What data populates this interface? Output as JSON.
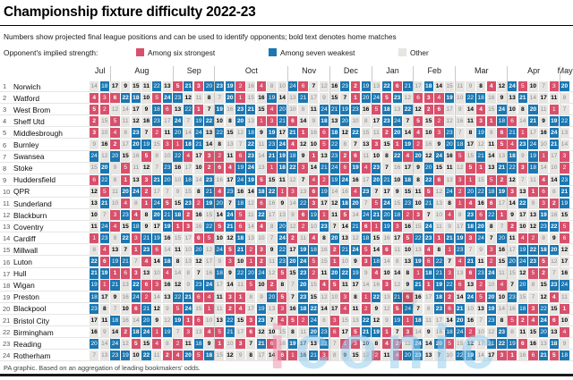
{
  "title": "Championship fixture difficulty 2022-23",
  "subtitle": "Numbers show projected final league positions and can be used to identify opponents; bold text denotes home matches",
  "legend": {
    "label": "Opponent's implied strength:",
    "items": [
      {
        "label": "Among six strongest",
        "color": "#d8506b"
      },
      {
        "label": "Among seven weakest",
        "color": "#1b77b1"
      },
      {
        "label": "Other",
        "color": "#e6e5e2"
      }
    ]
  },
  "footer": "PA graphic. Based on an aggregation of leading bookmakers' odds.",
  "watermark": {
    "first": "i",
    "rest": "conic"
  },
  "chart_data": {
    "type": "heatmap",
    "columns_total": 46,
    "months": [
      {
        "label": "Jul",
        "cols": 2
      },
      {
        "label": "Aug",
        "cols": 6
      },
      {
        "label": "Sep",
        "cols": 4
      },
      {
        "label": "Oct",
        "cols": 7
      },
      {
        "label": "Nov",
        "cols": 4
      },
      {
        "label": "Dec",
        "cols": 4
      },
      {
        "label": "Jan",
        "cols": 4
      },
      {
        "label": "Feb",
        "cols": 4
      },
      {
        "label": "Mar",
        "cols": 5
      },
      {
        "label": "Apr",
        "cols": 5
      },
      {
        "label": "May",
        "cols": 1
      }
    ],
    "color_rule": {
      "pink_strongest": "values 1-6",
      "gray_other": "values 7-17",
      "blue_weakest": "values 18-24"
    },
    "teams": [
      {
        "rank": 1,
        "name": "Norwich",
        "fixtures": [
          14,
          18,
          17,
          9,
          15,
          11,
          22,
          13,
          5,
          21,
          3,
          20,
          23,
          19,
          2,
          16,
          4,
          8,
          10,
          24,
          6,
          7,
          12,
          16,
          23,
          2,
          19,
          13,
          22,
          6,
          21,
          17,
          18,
          14,
          15,
          11,
          9,
          8,
          4,
          12,
          24,
          5,
          10,
          7,
          3,
          20
        ]
      },
      {
        "rank": 2,
        "name": "Watford",
        "fixtures": [
          4,
          3,
          6,
          22,
          18,
          10,
          5,
          24,
          23,
          12,
          11,
          8,
          7,
          20,
          1,
          15,
          16,
          19,
          14,
          13,
          21,
          17,
          9,
          15,
          7,
          1,
          20,
          24,
          5,
          23,
          12,
          6,
          3,
          4,
          19,
          10,
          22,
          18,
          16,
          9,
          13,
          21,
          14,
          17,
          11,
          8
        ]
      },
      {
        "rank": 3,
        "name": "West Brom",
        "fixtures": [
          5,
          2,
          12,
          14,
          17,
          9,
          18,
          6,
          13,
          22,
          1,
          7,
          19,
          16,
          23,
          21,
          15,
          4,
          20,
          10,
          8,
          11,
          24,
          21,
          19,
          23,
          16,
          5,
          18,
          13,
          22,
          12,
          2,
          6,
          17,
          9,
          14,
          4,
          15,
          24,
          10,
          8,
          20,
          11,
          1,
          7
        ]
      },
      {
        "rank": 4,
        "name": "Sheff Utd",
        "fixtures": [
          2,
          15,
          5,
          11,
          12,
          16,
          23,
          17,
          24,
          7,
          19,
          22,
          10,
          8,
          20,
          13,
          1,
          3,
          21,
          6,
          14,
          9,
          18,
          13,
          20,
          10,
          8,
          17,
          23,
          24,
          7,
          5,
          15,
          2,
          12,
          16,
          11,
          3,
          1,
          18,
          6,
          14,
          21,
          9,
          19,
          22
        ]
      },
      {
        "rank": 5,
        "name": "Middlesbrough",
        "fixtures": [
          3,
          10,
          4,
          8,
          23,
          7,
          2,
          11,
          20,
          14,
          24,
          13,
          22,
          15,
          12,
          18,
          9,
          19,
          17,
          21,
          1,
          16,
          6,
          18,
          12,
          22,
          15,
          11,
          2,
          20,
          14,
          4,
          10,
          3,
          23,
          7,
          8,
          19,
          9,
          6,
          21,
          1,
          17,
          16,
          24,
          13
        ]
      },
      {
        "rank": 6,
        "name": "Burnley",
        "fixtures": [
          9,
          16,
          2,
          17,
          20,
          19,
          15,
          3,
          1,
          18,
          21,
          14,
          8,
          13,
          7,
          22,
          11,
          23,
          24,
          4,
          12,
          10,
          5,
          22,
          8,
          7,
          13,
          3,
          15,
          1,
          19,
          2,
          16,
          9,
          20,
          18,
          17,
          12,
          11,
          5,
          4,
          23,
          24,
          10,
          21,
          14
        ]
      },
      {
        "rank": 7,
        "name": "Swansea",
        "fixtures": [
          24,
          12,
          20,
          15,
          16,
          5,
          8,
          10,
          22,
          4,
          17,
          3,
          2,
          11,
          6,
          23,
          14,
          21,
          19,
          18,
          9,
          1,
          13,
          23,
          2,
          6,
          11,
          10,
          8,
          22,
          4,
          20,
          12,
          24,
          16,
          5,
          15,
          21,
          14,
          13,
          18,
          9,
          19,
          1,
          17,
          3
        ]
      },
      {
        "rank": 8,
        "name": "Stoke",
        "fixtures": [
          15,
          20,
          9,
          5,
          11,
          12,
          7,
          23,
          16,
          17,
          10,
          2,
          6,
          4,
          19,
          24,
          13,
          1,
          18,
          22,
          3,
          14,
          21,
          24,
          6,
          19,
          4,
          23,
          7,
          16,
          17,
          9,
          20,
          15,
          11,
          12,
          5,
          1,
          13,
          21,
          22,
          3,
          18,
          14,
          10,
          2
        ]
      },
      {
        "rank": 9,
        "name": "Huddersfield",
        "fixtures": [
          6,
          22,
          8,
          1,
          13,
          3,
          21,
          20,
          10,
          18,
          14,
          23,
          16,
          17,
          24,
          19,
          5,
          15,
          11,
          12,
          7,
          4,
          2,
          19,
          24,
          16,
          17,
          20,
          21,
          10,
          18,
          8,
          22,
          6,
          13,
          3,
          1,
          15,
          5,
          2,
          12,
          7,
          11,
          4,
          14,
          23
        ]
      },
      {
        "rank": 10,
        "name": "QPR",
        "fixtures": [
          12,
          5,
          11,
          20,
          24,
          2,
          17,
          7,
          9,
          15,
          8,
          21,
          4,
          23,
          16,
          14,
          18,
          22,
          1,
          3,
          13,
          6,
          19,
          14,
          16,
          4,
          23,
          7,
          17,
          9,
          15,
          11,
          5,
          12,
          24,
          2,
          20,
          22,
          18,
          19,
          3,
          13,
          1,
          6,
          8,
          21
        ]
      },
      {
        "rank": 11,
        "name": "Sunderland",
        "fixtures": [
          13,
          21,
          10,
          4,
          8,
          1,
          24,
          5,
          15,
          23,
          2,
          19,
          20,
          7,
          18,
          12,
          6,
          16,
          9,
          14,
          22,
          3,
          17,
          12,
          18,
          20,
          7,
          5,
          24,
          15,
          23,
          10,
          21,
          13,
          8,
          1,
          4,
          16,
          6,
          17,
          14,
          22,
          9,
          3,
          2,
          19
        ]
      },
      {
        "rank": 12,
        "name": "Blackburn",
        "fixtures": [
          10,
          7,
          3,
          23,
          4,
          8,
          20,
          21,
          18,
          2,
          16,
          15,
          14,
          24,
          5,
          11,
          22,
          17,
          13,
          9,
          6,
          19,
          1,
          11,
          5,
          14,
          24,
          21,
          20,
          18,
          2,
          3,
          7,
          10,
          4,
          8,
          23,
          6,
          22,
          1,
          9,
          17,
          13,
          19,
          16,
          15
        ]
      },
      {
        "rank": 13,
        "name": "Coventry",
        "fixtures": [
          11,
          24,
          4,
          15,
          18,
          9,
          17,
          19,
          1,
          3,
          16,
          22,
          5,
          21,
          6,
          14,
          4,
          8,
          20,
          12,
          2,
          10,
          23,
          7,
          14,
          21,
          6,
          1,
          19,
          3,
          16,
          15,
          24,
          11,
          9,
          17,
          18,
          20,
          8,
          7,
          2,
          10,
          12,
          23,
          22,
          5
        ]
      },
      {
        "rank": 14,
        "name": "Cardiff",
        "fixtures": [
          1,
          23,
          9,
          22,
          3,
          21,
          19,
          16,
          15,
          17,
          6,
          5,
          10,
          12,
          18,
          13,
          10,
          7,
          24,
          2,
          11,
          4,
          8,
          20,
          13,
          12,
          18,
          15,
          16,
          17,
          5,
          22,
          23,
          1,
          21,
          19,
          3,
          24,
          7,
          20,
          11,
          4,
          2,
          8,
          9,
          6
        ]
      },
      {
        "rank": 15,
        "name": "Millwall",
        "fixtures": [
          8,
          4,
          13,
          7,
          1,
          23,
          6,
          14,
          11,
          10,
          20,
          12,
          24,
          5,
          21,
          2,
          3,
          9,
          22,
          17,
          19,
          18,
          16,
          2,
          21,
          24,
          5,
          14,
          6,
          11,
          10,
          13,
          4,
          8,
          1,
          23,
          7,
          9,
          3,
          16,
          17,
          19,
          22,
          18,
          20,
          12
        ]
      },
      {
        "rank": 16,
        "name": "Luton",
        "fixtures": [
          22,
          6,
          19,
          21,
          7,
          4,
          14,
          18,
          8,
          13,
          12,
          17,
          9,
          3,
          10,
          1,
          2,
          11,
          23,
          20,
          24,
          5,
          15,
          1,
          10,
          9,
          3,
          18,
          14,
          8,
          13,
          19,
          6,
          22,
          7,
          4,
          21,
          11,
          2,
          15,
          20,
          24,
          23,
          5,
          12,
          17
        ]
      },
      {
        "rank": 17,
        "name": "Hull",
        "fixtures": [
          21,
          19,
          1,
          6,
          3,
          13,
          10,
          4,
          14,
          8,
          7,
          16,
          18,
          9,
          22,
          20,
          24,
          12,
          5,
          15,
          23,
          2,
          11,
          20,
          22,
          19,
          9,
          4,
          10,
          14,
          8,
          1,
          18,
          21,
          3,
          13,
          6,
          23,
          24,
          11,
          15,
          12,
          5,
          2,
          7,
          16
        ]
      },
      {
        "rank": 18,
        "name": "Wigan",
        "fixtures": [
          19,
          1,
          21,
          13,
          22,
          6,
          3,
          16,
          12,
          9,
          23,
          24,
          17,
          14,
          11,
          5,
          10,
          2,
          8,
          7,
          20,
          15,
          4,
          5,
          11,
          17,
          14,
          16,
          3,
          12,
          9,
          21,
          1,
          19,
          22,
          6,
          13,
          2,
          10,
          4,
          7,
          20,
          8,
          15,
          23,
          24
        ]
      },
      {
        "rank": 19,
        "name": "Preston",
        "fixtures": [
          18,
          17,
          9,
          16,
          24,
          2,
          14,
          13,
          22,
          21,
          6,
          4,
          11,
          3,
          1,
          8,
          9,
          20,
          5,
          7,
          23,
          15,
          12,
          10,
          3,
          8,
          1,
          22,
          13,
          21,
          6,
          16,
          17,
          18,
          2,
          14,
          24,
          5,
          20,
          10,
          23,
          15,
          7,
          12,
          4,
          11
        ]
      },
      {
        "rank": 20,
        "name": "Blackpool",
        "fixtures": [
          23,
          8,
          7,
          10,
          6,
          21,
          12,
          9,
          5,
          24,
          15,
          1,
          11,
          2,
          4,
          17,
          19,
          13,
          3,
          16,
          18,
          22,
          14,
          17,
          4,
          11,
          2,
          9,
          12,
          5,
          24,
          7,
          8,
          23,
          6,
          21,
          10,
          13,
          19,
          14,
          16,
          18,
          3,
          22,
          15,
          1
        ]
      },
      {
        "rank": 21,
        "name": "Bristol City",
        "fixtures": [
          17,
          11,
          18,
          16,
          14,
          20,
          9,
          12,
          19,
          1,
          6,
          10,
          13,
          22,
          15,
          3,
          23,
          7,
          4,
          5,
          2,
          24,
          8,
          3,
          15,
          13,
          22,
          12,
          9,
          19,
          1,
          18,
          11,
          17,
          14,
          20,
          16,
          7,
          23,
          8,
          5,
          2,
          4,
          24,
          6,
          10
        ]
      },
      {
        "rank": 22,
        "name": "Birmingham",
        "fixtures": [
          16,
          9,
          14,
          2,
          18,
          24,
          1,
          19,
          7,
          3,
          13,
          4,
          5,
          21,
          17,
          6,
          12,
          10,
          15,
          8,
          11,
          20,
          23,
          6,
          17,
          5,
          21,
          19,
          1,
          7,
          3,
          14,
          9,
          16,
          18,
          24,
          2,
          10,
          12,
          23,
          8,
          11,
          15,
          20,
          13,
          4
        ]
      },
      {
        "rank": 23,
        "name": "Reading",
        "fixtures": [
          20,
          14,
          24,
          12,
          5,
          15,
          4,
          8,
          2,
          11,
          18,
          9,
          1,
          10,
          3,
          7,
          21,
          6,
          16,
          19,
          17,
          13,
          22,
          7,
          1,
          3,
          10,
          8,
          4,
          2,
          11,
          24,
          14,
          20,
          5,
          15,
          12,
          17,
          21,
          22,
          19,
          6,
          16,
          13,
          18,
          9
        ]
      },
      {
        "rank": 24,
        "name": "Rotherham",
        "fixtures": [
          7,
          13,
          23,
          19,
          10,
          22,
          11,
          2,
          4,
          20,
          5,
          18,
          15,
          12,
          9,
          8,
          17,
          14,
          6,
          1,
          16,
          21,
          3,
          8,
          9,
          15,
          12,
          2,
          11,
          4,
          20,
          23,
          13,
          7,
          10,
          22,
          19,
          14,
          17,
          3,
          1,
          16,
          6,
          21,
          5,
          18
        ]
      }
    ]
  }
}
